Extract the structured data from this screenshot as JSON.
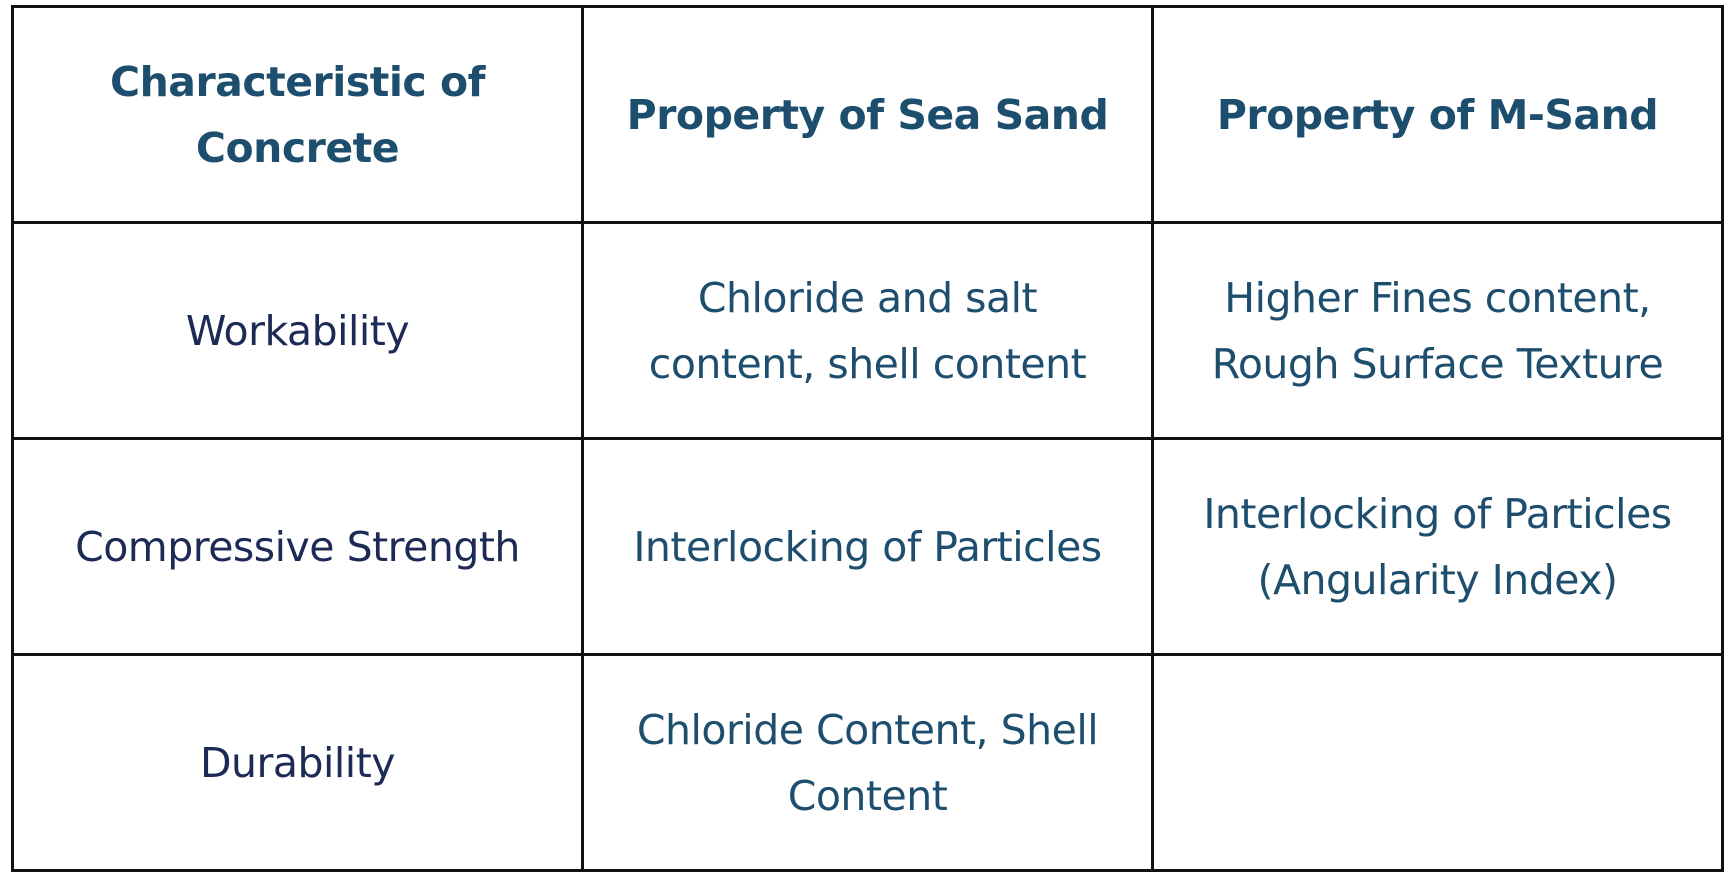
{
  "table": {
    "headers": [
      "Characteristic of Concrete",
      "Property of Sea Sand",
      "Property of M-Sand"
    ],
    "rows": [
      {
        "characteristic": "Workability",
        "sea_sand": "Chloride and salt content, shell content",
        "m_sand": "Higher Fines content, Rough Surface Texture"
      },
      {
        "characteristic": "Compressive Strength",
        "sea_sand": "Interlocking of Particles",
        "m_sand": "Interlocking of Particles (Angularity Index)"
      },
      {
        "characteristic": "Durability",
        "sea_sand": "Chloride Content, Shell Content",
        "m_sand": ""
      }
    ]
  },
  "colors": {
    "header_text": "#1e4e6e",
    "row_label_text": "#1c2a55",
    "cell_text": "#1e4e6e",
    "border": "#111111",
    "background": "#ffffff"
  }
}
